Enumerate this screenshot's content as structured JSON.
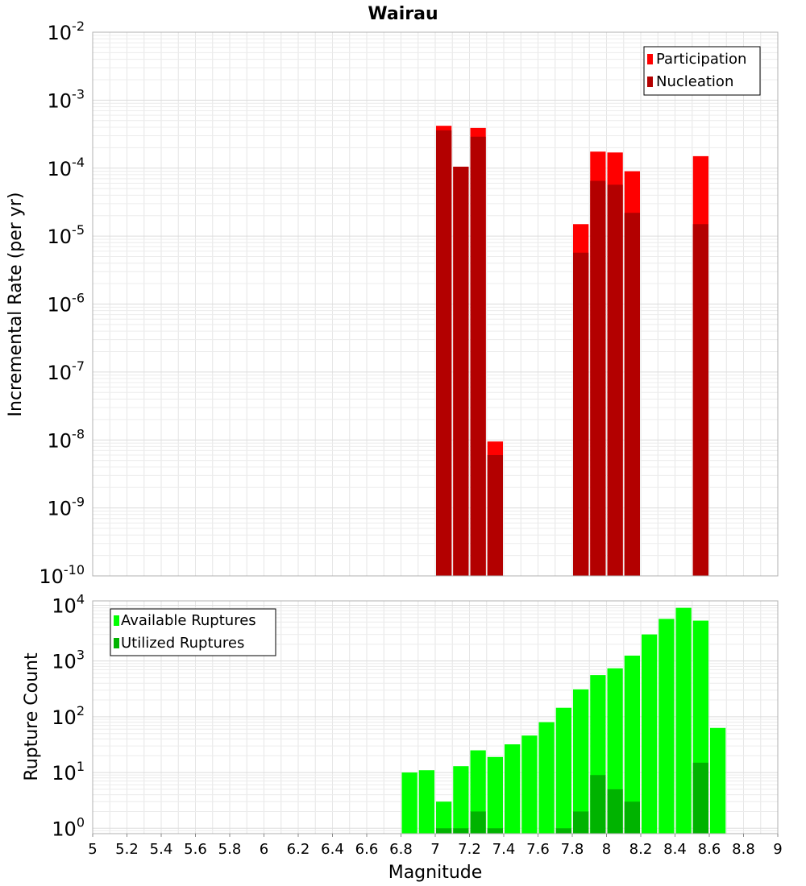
{
  "chart_data": [
    {
      "type": "bar",
      "panel": "top",
      "title": "Wairau",
      "xlabel": "",
      "ylabel": "Incremental Rate (per yr)",
      "yscale": "log",
      "ylim": [
        1e-10,
        0.01
      ],
      "xlim": [
        5,
        9
      ],
      "bin_width": 0.1,
      "grid": true,
      "legend_position": "top-right",
      "y_tick_labels": [
        "10-10",
        "10-9",
        "10-8",
        "10-7",
        "10-6",
        "10-5",
        "10-4",
        "10-3",
        "10-2"
      ],
      "series": [
        {
          "name": "Participation",
          "color": "#ff0000",
          "x": [
            7.05,
            7.15,
            7.25,
            7.35,
            7.85,
            7.95,
            8.05,
            8.15,
            8.55
          ],
          "values": [
            0.00042,
            0.000105,
            0.00039,
            9.5e-09,
            1.5e-05,
            0.000175,
            0.00017,
            9e-05,
            0.00015
          ]
        },
        {
          "name": "Nucleation",
          "color": "#b30000",
          "x": [
            7.05,
            7.15,
            7.25,
            7.35,
            7.85,
            7.95,
            8.05,
            8.15,
            8.55
          ],
          "values": [
            0.00036,
            0.000105,
            0.00029,
            6e-09,
            5.7e-06,
            6.5e-05,
            5.7e-05,
            2.2e-05,
            1.5e-05
          ]
        }
      ]
    },
    {
      "type": "bar",
      "panel": "bottom",
      "title": "",
      "xlabel": "Magnitude",
      "ylabel": "Rupture Count",
      "yscale": "log",
      "ylim": [
        0.8,
        12000
      ],
      "xlim": [
        5,
        9
      ],
      "bin_width": 0.1,
      "grid": true,
      "legend_position": "top-left",
      "x_tick_labels": [
        "5",
        "5.2",
        "5.4",
        "5.6",
        "5.8",
        "6",
        "6.2",
        "6.4",
        "6.6",
        "6.8",
        "7",
        "7.2",
        "7.4",
        "7.6",
        "7.8",
        "8",
        "8.2",
        "8.4",
        "8.6",
        "8.8",
        "9"
      ],
      "y_tick_labels": [
        "100",
        "101",
        "102",
        "103",
        "104"
      ],
      "series": [
        {
          "name": "Available Ruptures",
          "color": "#00ff00",
          "x": [
            6.85,
            6.95,
            7.05,
            7.15,
            7.25,
            7.35,
            7.45,
            7.55,
            7.65,
            7.75,
            7.85,
            7.95,
            8.05,
            8.15,
            8.25,
            8.35,
            8.45,
            8.55,
            8.65
          ],
          "values": [
            10,
            11,
            3,
            13,
            25,
            19,
            32,
            46,
            80,
            145,
            310,
            560,
            740,
            1250,
            3000,
            5700,
            9000,
            5300,
            63
          ]
        },
        {
          "name": "Utilized Ruptures",
          "color": "#00b300",
          "x": [
            7.05,
            7.15,
            7.25,
            7.35,
            7.75,
            7.85,
            7.95,
            8.05,
            8.15,
            8.55
          ],
          "values": [
            1,
            1,
            2,
            1,
            1,
            2,
            9,
            5,
            3,
            15
          ]
        }
      ]
    }
  ]
}
